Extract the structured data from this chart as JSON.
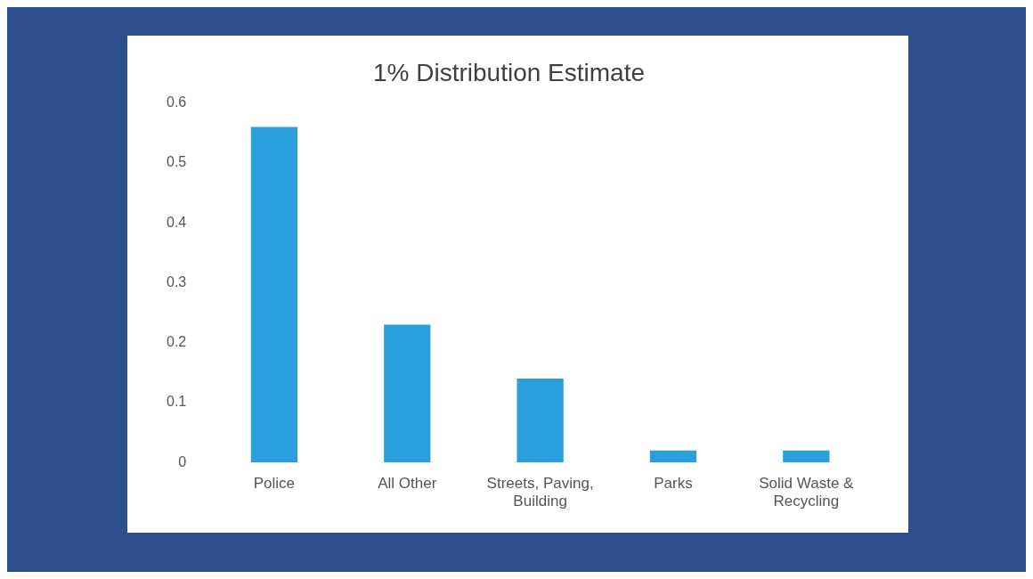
{
  "chart_data": {
    "type": "bar",
    "title": "1% Distribution Estimate",
    "categories": [
      "Police",
      "All Other",
      "Streets, Paving, Building",
      "Parks",
      "Solid Waste & Recycling"
    ],
    "values": [
      0.56,
      0.23,
      0.14,
      0.02,
      0.02
    ],
    "color": "#2b9fdc",
    "ylim": [
      0,
      0.6
    ],
    "yticks": [
      0,
      0.1,
      0.2,
      0.3,
      0.4,
      0.5,
      0.6
    ],
    "grid": false
  }
}
